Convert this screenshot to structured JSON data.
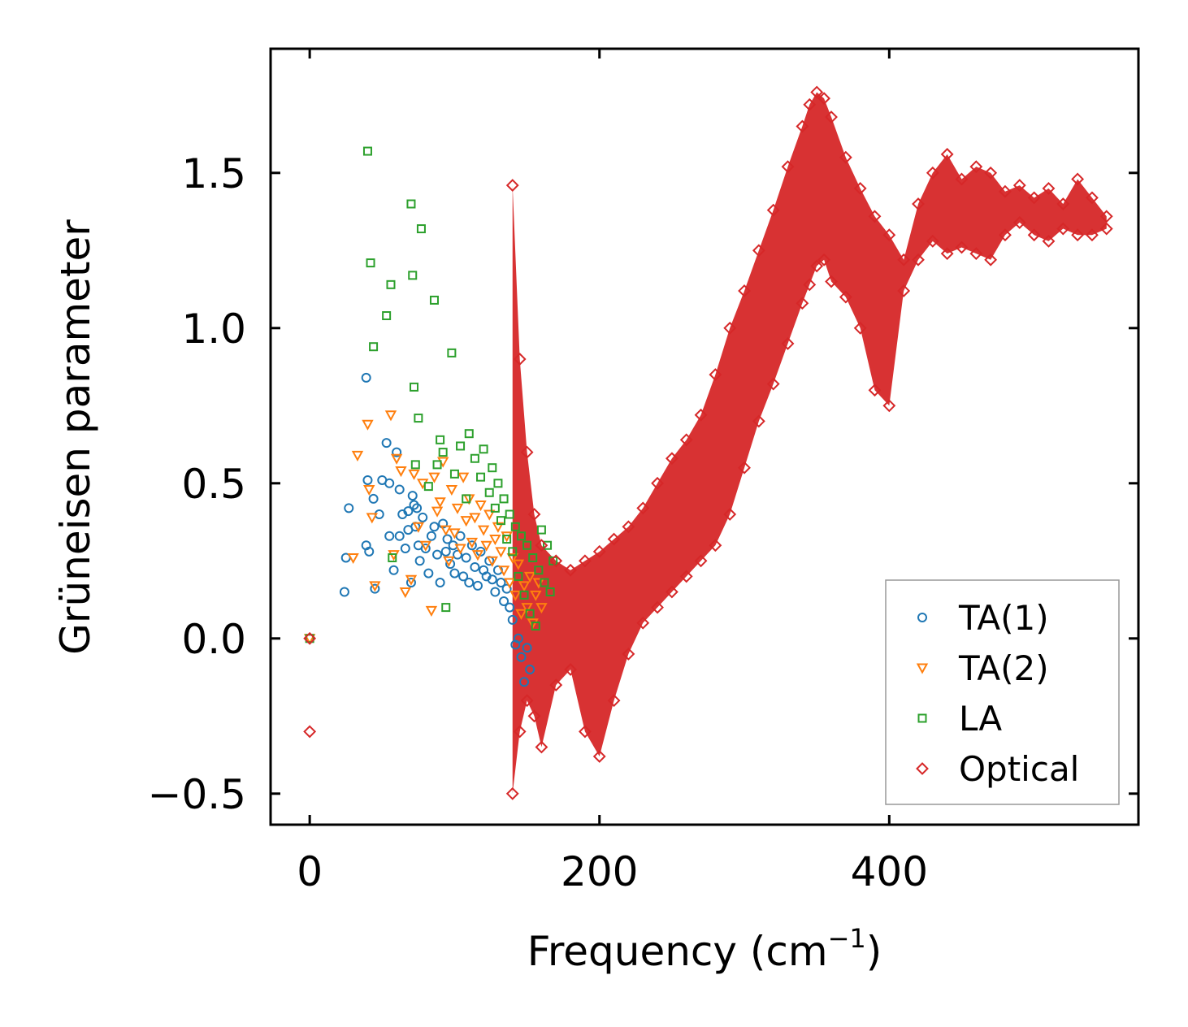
{
  "chart_data": {
    "type": "scatter",
    "title": "",
    "xlabel": "Frequency (cm",
    "xlabel_sup": "−1",
    "xlabel_end": ")",
    "ylabel": "Grüneisen parameter",
    "xlim": [
      -27,
      572
    ],
    "ylim": [
      -0.6,
      1.9
    ],
    "xticks": [
      0,
      200,
      400
    ],
    "xtick_labels": [
      "0",
      "200",
      "400"
    ],
    "yticks": [
      -0.5,
      0.0,
      0.5,
      1.0,
      1.5
    ],
    "ytick_labels": [
      "−0.5",
      "0.0",
      "0.5",
      "1.0",
      "1.5"
    ],
    "grid": false,
    "legend_position": "bottom-right",
    "series": [
      {
        "name": "TA(1)",
        "marker": "circle",
        "color": "#1f77b4",
        "x": [
          0,
          24,
          25,
          27,
          39,
          39,
          40,
          41,
          44,
          45,
          48,
          50,
          53,
          55,
          55,
          58,
          60,
          62,
          62,
          64,
          66,
          68,
          68,
          70,
          71,
          72,
          73,
          74,
          75,
          76,
          78,
          80,
          82,
          84,
          86,
          88,
          90,
          92,
          94,
          95,
          97,
          99,
          100,
          102,
          104,
          106,
          108,
          110,
          112,
          114,
          116,
          118,
          120,
          122,
          124,
          126,
          128,
          130,
          132,
          134,
          136,
          138,
          140,
          142,
          144,
          146,
          148,
          150,
          152
        ],
        "y": [
          0.0,
          0.15,
          0.26,
          0.42,
          0.84,
          0.3,
          0.51,
          0.28,
          0.45,
          0.16,
          0.4,
          0.51,
          0.63,
          0.33,
          0.5,
          0.22,
          0.6,
          0.48,
          0.33,
          0.4,
          0.29,
          0.41,
          0.35,
          0.18,
          0.46,
          0.43,
          0.36,
          0.42,
          0.3,
          0.25,
          0.39,
          0.29,
          0.21,
          0.33,
          0.36,
          0.27,
          0.18,
          0.37,
          0.28,
          0.32,
          0.24,
          0.3,
          0.21,
          0.27,
          0.33,
          0.2,
          0.26,
          0.18,
          0.3,
          0.23,
          0.17,
          0.28,
          0.22,
          0.2,
          0.25,
          0.19,
          0.15,
          0.22,
          0.18,
          0.12,
          0.16,
          0.1,
          0.06,
          -0.02,
          0.0,
          -0.06,
          -0.14,
          -0.03,
          -0.1
        ]
      },
      {
        "name": "TA(2)",
        "marker": "triangle_down",
        "color": "#ff7f0e",
        "x": [
          0,
          30,
          33,
          40,
          41,
          43,
          45,
          56,
          58,
          60,
          63,
          66,
          70,
          72,
          75,
          78,
          80,
          84,
          86,
          88,
          90,
          92,
          94,
          96,
          98,
          100,
          102,
          104,
          106,
          108,
          110,
          112,
          114,
          116,
          118,
          120,
          122,
          124,
          126,
          128,
          130,
          132,
          134,
          136,
          138,
          140,
          142,
          144,
          146,
          148,
          150,
          152,
          154,
          156,
          158,
          160
        ],
        "y": [
          0.0,
          0.26,
          0.59,
          0.69,
          0.48,
          0.39,
          0.17,
          0.72,
          0.27,
          0.58,
          0.54,
          0.15,
          0.19,
          0.53,
          0.36,
          0.5,
          0.3,
          0.09,
          0.52,
          0.41,
          0.44,
          0.57,
          0.35,
          0.25,
          0.48,
          0.34,
          0.42,
          0.29,
          0.52,
          0.38,
          0.45,
          0.31,
          0.39,
          0.27,
          0.43,
          0.35,
          0.3,
          0.4,
          0.25,
          0.32,
          0.36,
          0.28,
          0.22,
          0.33,
          0.18,
          0.26,
          0.14,
          0.24,
          0.08,
          0.17,
          0.1,
          0.2,
          0.05,
          0.14,
          0.18,
          0.1
        ]
      },
      {
        "name": "LA",
        "marker": "square",
        "color": "#2ca02c",
        "x": [
          0,
          40,
          42,
          44,
          53,
          56,
          57,
          70,
          71,
          72,
          73,
          75,
          77,
          82,
          86,
          88,
          90,
          92,
          94,
          98,
          100,
          104,
          108,
          110,
          114,
          118,
          120,
          124,
          126,
          128,
          130,
          132,
          134,
          136,
          138,
          140,
          142,
          144,
          146,
          148,
          150,
          152,
          154,
          156,
          158,
          160,
          162,
          164,
          166,
          168
        ],
        "y": [
          0.0,
          1.57,
          1.21,
          0.94,
          1.04,
          1.14,
          0.26,
          1.4,
          1.17,
          0.81,
          0.56,
          0.71,
          1.32,
          0.49,
          1.09,
          0.56,
          0.64,
          0.6,
          0.1,
          0.92,
          0.53,
          0.62,
          0.45,
          0.66,
          0.58,
          0.52,
          0.61,
          0.47,
          0.55,
          0.42,
          0.5,
          0.38,
          0.45,
          0.32,
          0.4,
          0.28,
          0.36,
          0.2,
          0.33,
          0.14,
          0.3,
          0.08,
          0.26,
          0.04,
          0.22,
          0.35,
          0.18,
          0.3,
          0.15,
          0.25
        ]
      },
      {
        "name": "Optical",
        "marker": "diamond",
        "color": "#d62728",
        "x": [
          0,
          140,
          145,
          150,
          155,
          160,
          170,
          180,
          190,
          200,
          210,
          220,
          230,
          240,
          250,
          260,
          270,
          280,
          290,
          300,
          310,
          320,
          330,
          340,
          345,
          350,
          355,
          360,
          370,
          380,
          390,
          400,
          410,
          420,
          430,
          440,
          450,
          460,
          470,
          480,
          490,
          500,
          510,
          520,
          530,
          540,
          550
        ],
        "y": [
          0.0,
          1.46,
          0.9,
          0.6,
          0.4,
          0.3,
          0.25,
          0.22,
          0.25,
          0.28,
          0.32,
          0.36,
          0.42,
          0.5,
          0.58,
          0.64,
          0.72,
          0.85,
          1.0,
          1.12,
          1.25,
          1.38,
          1.52,
          1.65,
          1.72,
          1.76,
          1.74,
          1.68,
          1.55,
          1.45,
          1.36,
          1.3,
          1.22,
          1.4,
          1.5,
          1.56,
          1.48,
          1.52,
          1.5,
          1.44,
          1.46,
          1.42,
          1.45,
          1.4,
          1.48,
          1.42,
          1.36
        ],
        "cloud_low": [
          -0.3,
          -0.5,
          -0.3,
          -0.2,
          -0.25,
          -0.35,
          -0.15,
          -0.1,
          -0.3,
          -0.38,
          -0.2,
          -0.05,
          0.05,
          0.1,
          0.15,
          0.2,
          0.25,
          0.3,
          0.4,
          0.55,
          0.7,
          0.82,
          0.95,
          1.08,
          1.14,
          1.2,
          1.22,
          1.15,
          1.1,
          1.0,
          0.8,
          0.75,
          1.12,
          1.22,
          1.28,
          1.24,
          1.26,
          1.24,
          1.22,
          1.3,
          1.34,
          1.3,
          1.28,
          1.32,
          1.3,
          1.3,
          1.32
        ]
      }
    ]
  }
}
